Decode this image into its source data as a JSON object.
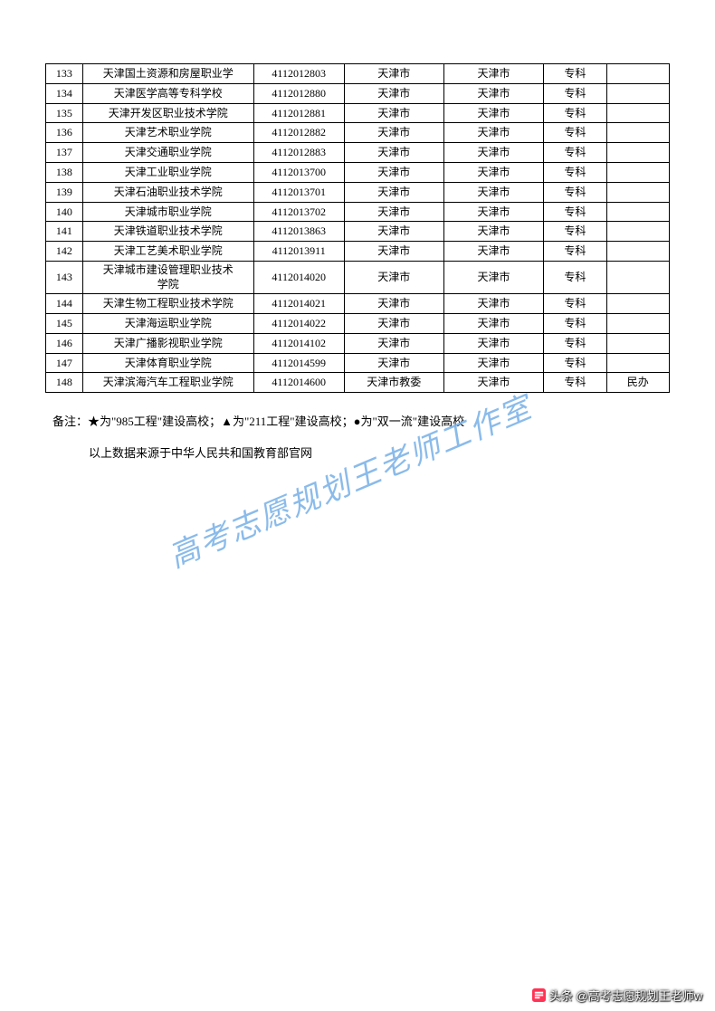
{
  "table": {
    "rows": [
      {
        "idx": "133",
        "name": "天津国土资源和房屋职业学",
        "code": "4112012803",
        "dept": "天津市",
        "city": "天津市",
        "level": "专科",
        "type": ""
      },
      {
        "idx": "134",
        "name": "天津医学高等专科学校",
        "code": "4112012880",
        "dept": "天津市",
        "city": "天津市",
        "level": "专科",
        "type": ""
      },
      {
        "idx": "135",
        "name": "天津开发区职业技术学院",
        "code": "4112012881",
        "dept": "天津市",
        "city": "天津市",
        "level": "专科",
        "type": ""
      },
      {
        "idx": "136",
        "name": "天津艺术职业学院",
        "code": "4112012882",
        "dept": "天津市",
        "city": "天津市",
        "level": "专科",
        "type": ""
      },
      {
        "idx": "137",
        "name": "天津交通职业学院",
        "code": "4112012883",
        "dept": "天津市",
        "city": "天津市",
        "level": "专科",
        "type": ""
      },
      {
        "idx": "138",
        "name": "天津工业职业学院",
        "code": "4112013700",
        "dept": "天津市",
        "city": "天津市",
        "level": "专科",
        "type": ""
      },
      {
        "idx": "139",
        "name": "天津石油职业技术学院",
        "code": "4112013701",
        "dept": "天津市",
        "city": "天津市",
        "level": "专科",
        "type": ""
      },
      {
        "idx": "140",
        "name": "天津城市职业学院",
        "code": "4112013702",
        "dept": "天津市",
        "city": "天津市",
        "level": "专科",
        "type": ""
      },
      {
        "idx": "141",
        "name": "天津铁道职业技术学院",
        "code": "4112013863",
        "dept": "天津市",
        "city": "天津市",
        "level": "专科",
        "type": ""
      },
      {
        "idx": "142",
        "name": "天津工艺美术职业学院",
        "code": "4112013911",
        "dept": "天津市",
        "city": "天津市",
        "level": "专科",
        "type": ""
      },
      {
        "idx": "143",
        "name": "天津城市建设管理职业技术\n学院",
        "code": "4112014020",
        "dept": "天津市",
        "city": "天津市",
        "level": "专科",
        "type": ""
      },
      {
        "idx": "144",
        "name": "天津生物工程职业技术学院",
        "code": "4112014021",
        "dept": "天津市",
        "city": "天津市",
        "level": "专科",
        "type": ""
      },
      {
        "idx": "145",
        "name": "天津海运职业学院",
        "code": "4112014022",
        "dept": "天津市",
        "city": "天津市",
        "level": "专科",
        "type": ""
      },
      {
        "idx": "146",
        "name": "天津广播影视职业学院",
        "code": "4112014102",
        "dept": "天津市",
        "city": "天津市",
        "level": "专科",
        "type": ""
      },
      {
        "idx": "147",
        "name": "天津体育职业学院",
        "code": "4112014599",
        "dept": "天津市",
        "city": "天津市",
        "level": "专科",
        "type": ""
      },
      {
        "idx": "148",
        "name": "天津滨海汽车工程职业学院",
        "code": "4112014600",
        "dept": "天津市教委",
        "city": "天津市",
        "level": "专科",
        "type": "民办"
      }
    ]
  },
  "notes": {
    "line1": "备注：★为\"985工程\"建设高校；▲为\"211工程\"建设高校；●为\"双一流\"建设高校",
    "line2": "以上数据来源于中华人民共和国教育部官网"
  },
  "watermark": {
    "text": "高考志愿规划王老师工作室",
    "color": "#7eb4e8",
    "fontsize": 34,
    "rotation": -23
  },
  "footer": {
    "text": "头条 @高考志愿规划王老师w"
  },
  "style": {
    "page_bg": "#ffffff",
    "border_color": "#000000",
    "text_color": "#000000",
    "table_fontsize": 12,
    "notes_fontsize": 13,
    "col_widths": {
      "idx": 40,
      "name": 185,
      "code": 98,
      "dept": 108,
      "city": 108,
      "level": 68,
      "type": 68
    }
  }
}
